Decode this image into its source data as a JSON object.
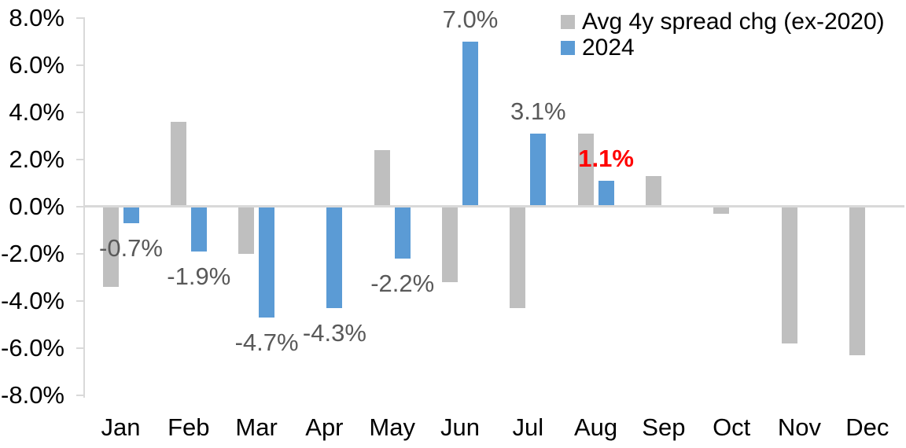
{
  "chart_data": {
    "type": "bar",
    "title": "",
    "xlabel": "",
    "ylabel": "",
    "categories": [
      "Jan",
      "Feb",
      "Mar",
      "Apr",
      "May",
      "Jun",
      "Jul",
      "Aug",
      "Sep",
      "Oct",
      "Nov",
      "Dec"
    ],
    "series": [
      {
        "name": "Avg 4y spread chg (ex-2020)",
        "color": "#BFBFBF",
        "values": [
          -3.4,
          3.6,
          -2.0,
          0.0,
          2.4,
          -3.2,
          -4.3,
          3.1,
          1.3,
          -0.3,
          -5.8,
          -6.3
        ]
      },
      {
        "name": "2024",
        "color": "#5B9BD5",
        "values": [
          -0.7,
          -1.9,
          -4.7,
          -4.3,
          -2.2,
          7.0,
          3.1,
          1.1,
          null,
          null,
          null,
          null
        ]
      }
    ],
    "data_labels": [
      {
        "category": "Jan",
        "series": "2024",
        "text": "-0.7%",
        "color": "#595959",
        "bold": false
      },
      {
        "category": "Feb",
        "series": "2024",
        "text": "-1.9%",
        "color": "#595959",
        "bold": false
      },
      {
        "category": "Mar",
        "series": "2024",
        "text": "-4.7%",
        "color": "#595959",
        "bold": false
      },
      {
        "category": "Apr",
        "series": "2024",
        "text": "-4.3%",
        "color": "#595959",
        "bold": false
      },
      {
        "category": "May",
        "series": "2024",
        "text": "-2.2%",
        "color": "#595959",
        "bold": false
      },
      {
        "category": "Jun",
        "series": "2024",
        "text": "7.0%",
        "color": "#595959",
        "bold": false
      },
      {
        "category": "Jul",
        "series": "2024",
        "text": "3.1%",
        "color": "#595959",
        "bold": false
      },
      {
        "category": "Aug",
        "series": "2024",
        "text": "1.1%",
        "color": "#FF0000",
        "bold": true
      }
    ],
    "y_axis": {
      "ticks": [
        "8.0%",
        "6.0%",
        "4.0%",
        "2.0%",
        "0.0%",
        "-2.0%",
        "-4.0%",
        "-6.0%",
        "-8.0%"
      ],
      "min": -8,
      "max": 8,
      "step": 2
    },
    "ylim": [
      -8,
      8
    ],
    "grid": false,
    "legend_position": "top-right",
    "colors": {
      "axis": "#D9D9D9",
      "text": "#000000",
      "data_label": "#595959",
      "highlight": "#FF0000",
      "background": "#FFFFFF"
    }
  }
}
